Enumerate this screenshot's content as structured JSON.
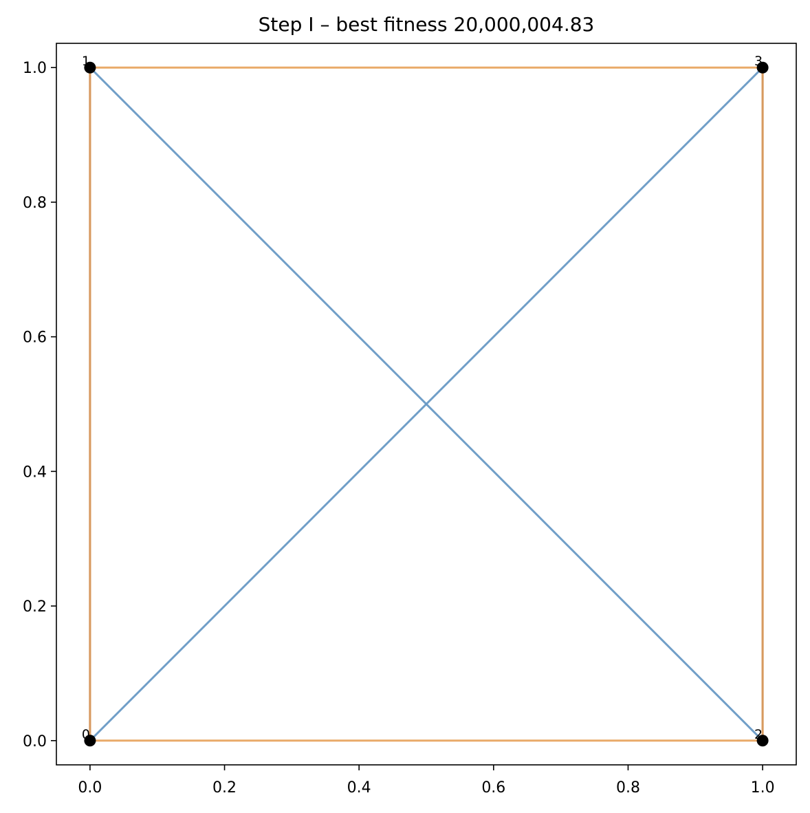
{
  "chart_data": {
    "type": "line",
    "title": "Step I – best fitness 20,000,004.83",
    "xlabel": "",
    "ylabel": "",
    "xlim": [
      -0.05,
      1.05
    ],
    "ylim": [
      -0.036,
      1.036
    ],
    "x_ticks": [
      0.0,
      0.2,
      0.4,
      0.6,
      0.8,
      1.0
    ],
    "y_ticks": [
      0.0,
      0.2,
      0.4,
      0.6,
      0.8,
      1.0
    ],
    "x_tick_labels": [
      "0.0",
      "0.2",
      "0.4",
      "0.6",
      "0.8",
      "1.0"
    ],
    "y_tick_labels": [
      "0.0",
      "0.2",
      "0.4",
      "0.6",
      "0.8",
      "1.0"
    ],
    "grid": false,
    "legend": "none",
    "nodes": [
      {
        "label": "0",
        "x": 0.0,
        "y": 0.0
      },
      {
        "label": "1",
        "x": 0.0,
        "y": 1.0
      },
      {
        "label": "2",
        "x": 1.0,
        "y": 0.0
      },
      {
        "label": "3",
        "x": 1.0,
        "y": 1.0
      }
    ],
    "series": [
      {
        "color": "#e8a662",
        "edges": [
          [
            0,
            1
          ],
          [
            1,
            3
          ],
          [
            3,
            2
          ],
          [
            2,
            0
          ]
        ]
      },
      {
        "color": "#6a9ac6",
        "edges": [
          [
            1,
            2
          ],
          [
            0,
            3
          ]
        ]
      }
    ],
    "edge_overlap_color": "#d79a60",
    "node_color": "#000000"
  }
}
